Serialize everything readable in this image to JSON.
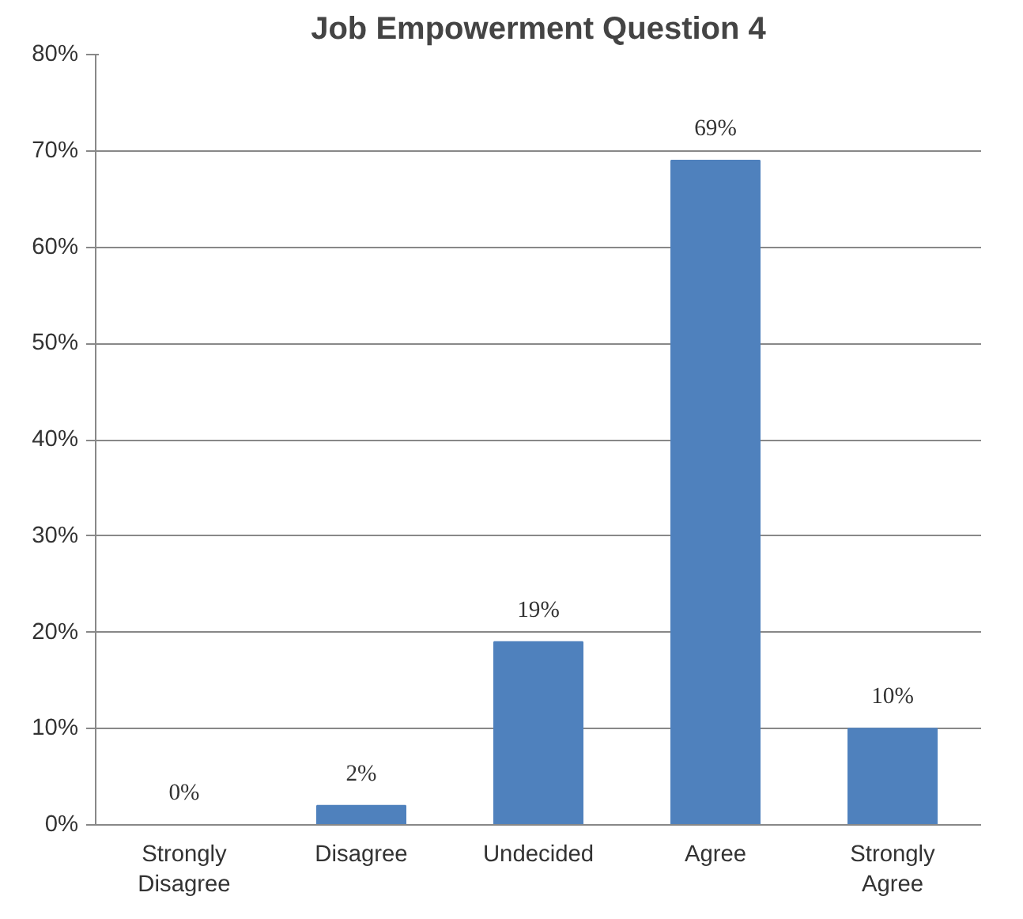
{
  "chart_data": {
    "type": "bar",
    "title": "Job Empowerment Question 4",
    "categories": [
      "Strongly Disagree",
      "Disagree",
      "Undecided",
      "Agree",
      "Strongly Agree"
    ],
    "values": [
      0,
      2,
      19,
      69,
      10
    ],
    "value_labels": [
      "0%",
      "2%",
      "19%",
      "69%",
      "10%"
    ],
    "color": "#4f81bd",
    "ylim": [
      0,
      80
    ],
    "yticks": [
      {
        "value": 0,
        "label": "0%"
      },
      {
        "value": 10,
        "label": "10%"
      },
      {
        "value": 20,
        "label": "20%"
      },
      {
        "value": 30,
        "label": "30%"
      },
      {
        "value": 40,
        "label": "40%"
      },
      {
        "value": 50,
        "label": "50%"
      },
      {
        "value": 60,
        "label": "60%"
      },
      {
        "value": 70,
        "label": "70%"
      },
      {
        "value": 80,
        "label": "80%"
      }
    ],
    "grid": "y"
  }
}
